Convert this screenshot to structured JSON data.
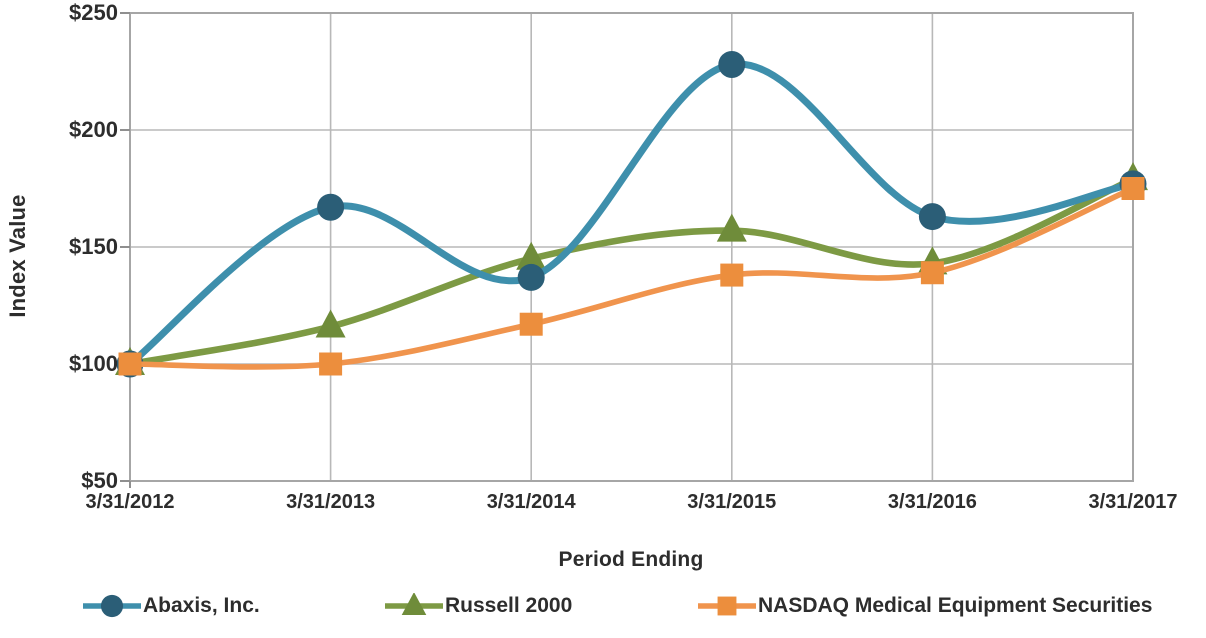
{
  "chart_data": {
    "type": "line",
    "title": "",
    "xlabel": "Period Ending",
    "ylabel": "Index Value",
    "x_categories": [
      "3/31/2012",
      "3/31/2013",
      "3/31/2014",
      "3/31/2015",
      "3/31/2016",
      "3/31/2017"
    ],
    "y_ticks": {
      "labels": [
        "$250",
        "$200",
        "$150",
        "$100",
        "$50"
      ],
      "values": [
        250,
        200,
        150,
        100,
        50
      ]
    },
    "ylim": [
      50,
      250
    ],
    "grid": true,
    "smooth_lines": true,
    "legend_position": "bottom",
    "grid_color": "#b8b8b8",
    "border_color": "#a6a6a6",
    "tick_color": "#8f8f8f",
    "text_color": "#2d2d2d",
    "series": [
      {
        "name": "Abaxis, Inc.",
        "marker": "circle",
        "line_color": "#3e8fac",
        "marker_color": "#2b5e77",
        "line_width": 7,
        "z_index": 2,
        "values": [
          100,
          167,
          137,
          228,
          163,
          177
        ]
      },
      {
        "name": "Russell 2000",
        "marker": "triangle",
        "line_color": "#7d9a44",
        "marker_color": "#6f8c3a",
        "line_width": 6.6,
        "z_index": 1,
        "values": [
          100,
          116,
          145,
          157,
          143,
          179
        ]
      },
      {
        "name": "NASDAQ Medical Equipment Securities",
        "marker": "square",
        "line_color": "#f0944d",
        "marker_color": "#ec8e3d",
        "line_width": 5.6,
        "z_index": 3,
        "values": [
          100,
          100,
          117,
          138,
          139,
          175
        ]
      }
    ]
  }
}
